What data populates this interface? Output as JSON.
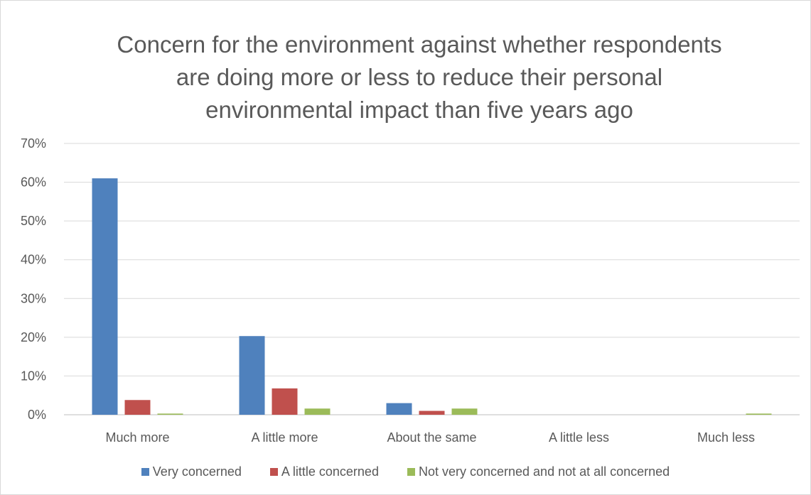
{
  "chart_data": {
    "type": "bar",
    "title_lines": [
      "Concern for the environment against whether respondents",
      "are doing more or less to reduce their personal",
      "environmental impact than five years ago"
    ],
    "categories": [
      "Much more",
      "A little more",
      "About the same",
      "A little less",
      "Much less"
    ],
    "series": [
      {
        "name": "Very concerned",
        "color": "#4f81bd",
        "values": [
          61,
          20.3,
          3,
          0,
          0
        ]
      },
      {
        "name": "A little concerned",
        "color": "#c0504d",
        "values": [
          3.8,
          6.8,
          1,
          0,
          0
        ]
      },
      {
        "name": "Not very concerned and not at all concerned",
        "color": "#9bbb59",
        "values": [
          0.3,
          1.6,
          1.6,
          0,
          0.3
        ]
      }
    ],
    "ylim": [
      0,
      70
    ],
    "yticks": [
      "0%",
      "10%",
      "20%",
      "30%",
      "40%",
      "50%",
      "60%",
      "70%"
    ],
    "ytick_values": [
      0,
      10,
      20,
      30,
      40,
      50,
      60,
      70
    ],
    "grid": true,
    "legend_position": "bottom"
  }
}
